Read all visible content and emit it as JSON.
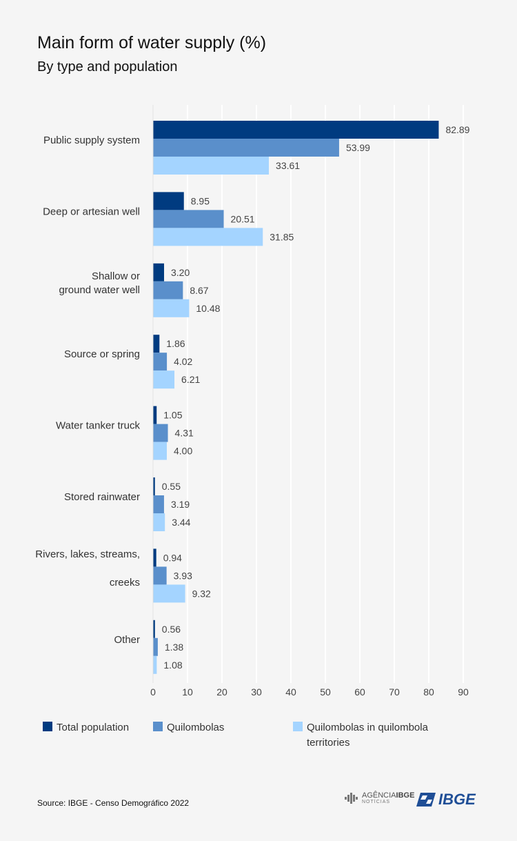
{
  "title": "Main form of water supply (%)",
  "subtitle": "By type and population",
  "source": "Source: IBGE - Censo Demográfico 2022",
  "logos": {
    "agencia_line1": "AGÊNCIA",
    "agencia_line1_bold": "IBGE",
    "agencia_line2": "NOTÍCIAS",
    "ibge": "IBGE"
  },
  "colors": {
    "total": "#003b80",
    "quilombolas": "#5a8fcb",
    "territories": "#a4d4ff",
    "grid": "#ffffff",
    "background": "#f5f5f5"
  },
  "chart_data": {
    "type": "bar",
    "orientation": "horizontal",
    "title": "Main form of water supply (%)",
    "subtitle": "By type and population",
    "categories": [
      [
        "Public supply system"
      ],
      [
        "Deep or artesian well"
      ],
      [
        "Shallow or",
        "ground water well"
      ],
      [
        "Source or spring"
      ],
      [
        "Water tanker truck"
      ],
      [
        "Stored rainwater"
      ],
      [
        "Rivers, lakes, streams,",
        "creeks"
      ],
      [
        "Other"
      ]
    ],
    "series": [
      {
        "name": "Total population",
        "color": "#003b80",
        "values": [
          82.89,
          8.95,
          3.2,
          1.86,
          1.05,
          0.55,
          0.94,
          0.56
        ]
      },
      {
        "name": "Quilombolas",
        "color": "#5a8fcb",
        "values": [
          53.99,
          20.51,
          8.67,
          4.02,
          4.31,
          3.19,
          3.93,
          1.38
        ]
      },
      {
        "name": "Quilombolas in quilombola territories",
        "color": "#a4d4ff",
        "values": [
          33.61,
          31.85,
          10.48,
          6.21,
          4.0,
          3.44,
          9.32,
          1.08
        ]
      }
    ],
    "xlim": [
      0,
      90
    ],
    "xticks": [
      0,
      10,
      20,
      30,
      40,
      50,
      60,
      70,
      80,
      90
    ],
    "grid": true,
    "legend_position": "bottom",
    "legend_lines": [
      [
        "Total population"
      ],
      [
        "Quilombolas"
      ],
      [
        "Quilombolas in quilombola",
        "territories"
      ]
    ]
  }
}
